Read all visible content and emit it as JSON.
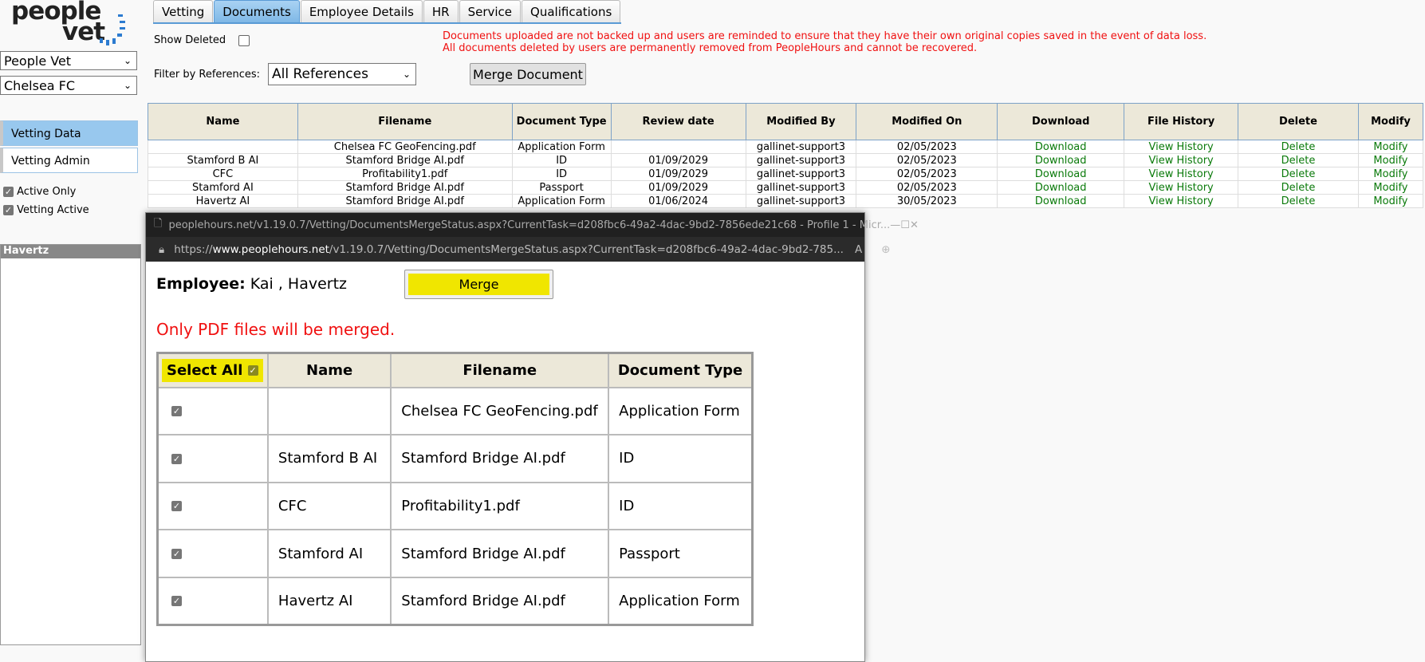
{
  "logo": {
    "line1": "people",
    "line2": "vet"
  },
  "sidebar": {
    "company_select": "People Vet",
    "club_select": "Chelsea FC",
    "nav": [
      {
        "label": "Vetting Data",
        "active": true
      },
      {
        "label": "Vetting Admin",
        "active": false
      }
    ],
    "checks": [
      {
        "label": "Active Only",
        "checked": true
      },
      {
        "label": "Vetting Active",
        "checked": true
      }
    ],
    "panel_header": "Havertz"
  },
  "tabs": [
    {
      "label": "Vetting"
    },
    {
      "label": "Documents",
      "active": true
    },
    {
      "label": "Employee Details"
    },
    {
      "label": "HR"
    },
    {
      "label": "Service"
    },
    {
      "label": "Qualifications"
    }
  ],
  "toolbar": {
    "show_deleted": "Show Deleted",
    "filter_label": "Filter by References:",
    "filter_value": "All References",
    "merge_document": "Merge Document"
  },
  "notice": {
    "line1": "Documents uploaded are not backed up and users are reminded to ensure that they have their own original copies saved in the event of data loss.",
    "line2": "All documents deleted by users are permanently removed from PeopleHours and cannot be recovered."
  },
  "documents": {
    "columns": [
      "Name",
      "Filename",
      "Document Type",
      "Review date",
      "Modified By",
      "Modified On",
      "Download",
      "File History",
      "Delete",
      "Modify"
    ],
    "rows": [
      {
        "name": "",
        "filename": "Chelsea FC GeoFencing.pdf",
        "type": "Application Form",
        "review": "",
        "by": "gallinet-support3",
        "on": "02/05/2023",
        "download": "Download",
        "history": "View History",
        "delete": "Delete",
        "modify": "Modify"
      },
      {
        "name": "Stamford B AI",
        "filename": "Stamford Bridge AI.pdf",
        "type": "ID",
        "review": "01/09/2029",
        "by": "gallinet-support3",
        "on": "02/05/2023",
        "download": "Download",
        "history": "View History",
        "delete": "Delete",
        "modify": "Modify"
      },
      {
        "name": "CFC",
        "filename": "Profitability1.pdf",
        "type": "ID",
        "review": "01/09/2029",
        "by": "gallinet-support3",
        "on": "02/05/2023",
        "download": "Download",
        "history": "View History",
        "delete": "Delete",
        "modify": "Modify"
      },
      {
        "name": "Stamford AI",
        "filename": "Stamford Bridge AI.pdf",
        "type": "Passport",
        "review": "01/09/2029",
        "by": "gallinet-support3",
        "on": "02/05/2023",
        "download": "Download",
        "history": "View History",
        "delete": "Delete",
        "modify": "Modify"
      },
      {
        "name": "Havertz AI",
        "filename": "Stamford Bridge AI.pdf",
        "type": "Application Form",
        "review": "01/06/2024",
        "by": "gallinet-support3",
        "on": "30/05/2023",
        "download": "Download",
        "history": "View History",
        "delete": "Delete",
        "modify": "Modify"
      }
    ]
  },
  "popup": {
    "window_title": "peoplehours.net/v1.19.0.7/Vetting/DocumentsMergeStatus.aspx?CurrentTask=d208fbc6-49a2-4dac-9bd2-7856ede21c68 - Profile 1 - Micr...",
    "url_prefix": "https://",
    "url_host": "www.peoplehours.net",
    "url_path": "/v1.19.0.7/Vetting/DocumentsMergeStatus.aspx?CurrentTask=d208fbc6-49a2-4dac-9bd2-785...",
    "employee_label": "Employee:",
    "employee_name": "Kai , Havertz",
    "merge_button": "Merge",
    "warning": "Only PDF files will be merged.",
    "columns": [
      "Select All",
      "Name",
      "Filename",
      "Document Type"
    ],
    "rows": [
      {
        "checked": true,
        "name": "",
        "filename": "Chelsea FC GeoFencing.pdf",
        "type": "Application Form"
      },
      {
        "checked": true,
        "name": "Stamford B AI",
        "filename": "Stamford Bridge AI.pdf",
        "type": "ID"
      },
      {
        "checked": true,
        "name": "CFC",
        "filename": "Profitability1.pdf",
        "type": "ID"
      },
      {
        "checked": true,
        "name": "Stamford AI",
        "filename": "Stamford Bridge AI.pdf",
        "type": "Passport"
      },
      {
        "checked": true,
        "name": "Havertz AI",
        "filename": "Stamford Bridge AI.pdf",
        "type": "Application Form"
      }
    ]
  },
  "colors": {
    "accent": "#7fb8e6",
    "highlight": "#f0e600",
    "warning": "#f01010",
    "link": "#0a7a0a",
    "header_bg": "#ece8d9"
  }
}
